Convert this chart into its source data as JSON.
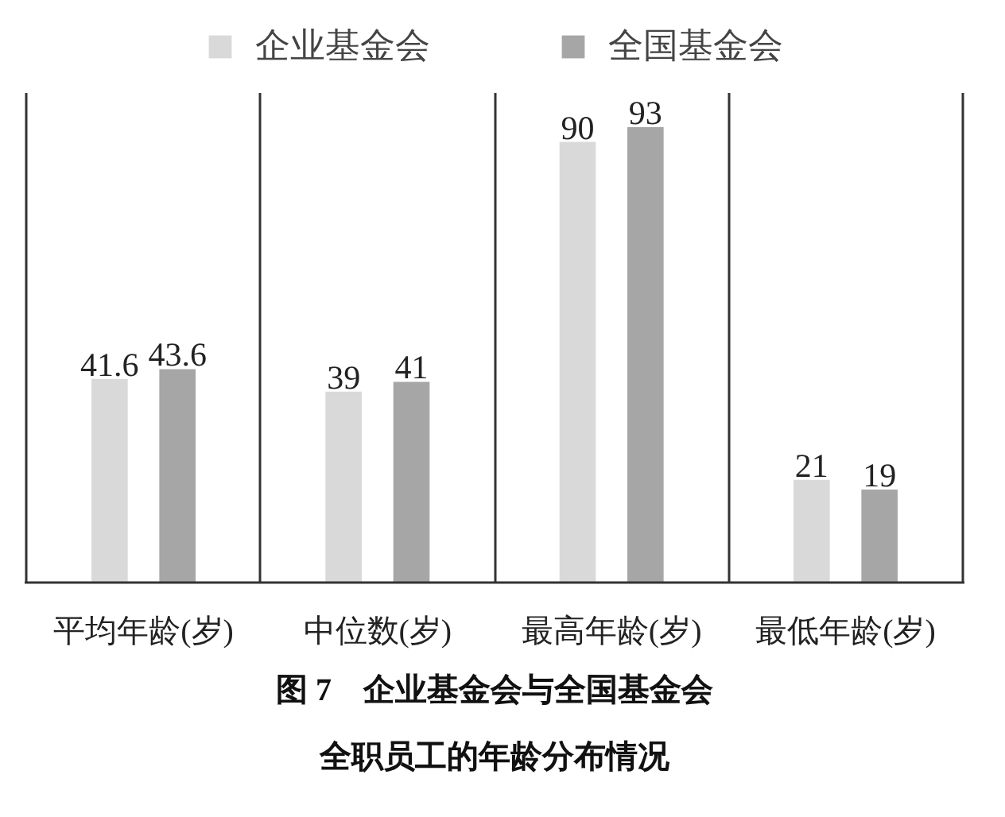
{
  "chart_data": {
    "type": "bar",
    "title": "图 7　企业基金会与全国基金会全职员工的年龄分布情况",
    "categories": [
      "平均年龄(岁)",
      "中位数(岁)",
      "最高年龄(岁)",
      "最低年龄(岁)"
    ],
    "series": [
      {
        "name": "企业基金会",
        "color": "#d9d9d9",
        "values": [
          41.6,
          39,
          90,
          21
        ]
      },
      {
        "name": "全国基金会",
        "color": "#a6a6a6",
        "values": [
          43.6,
          41,
          93,
          19
        ]
      }
    ],
    "ylim": [
      0,
      100
    ],
    "tick_labels": "x",
    "grid": "x",
    "legend": "top",
    "data_labels": true
  }
}
